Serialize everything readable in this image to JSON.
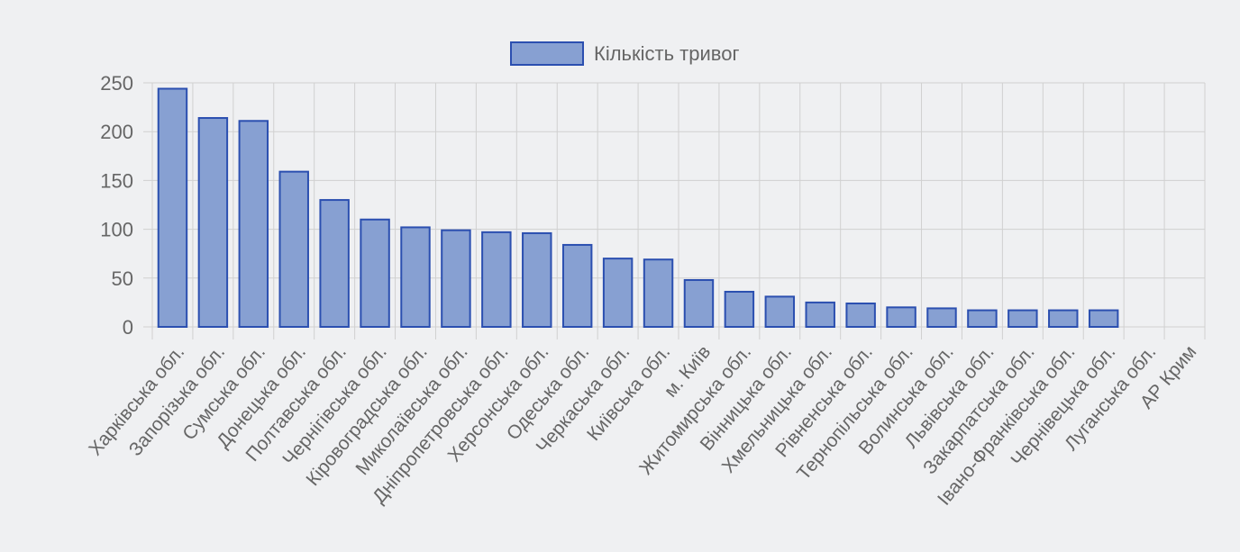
{
  "chart_data": {
    "type": "bar",
    "legend": {
      "label": "Кількість тривог",
      "position": "top"
    },
    "categories": [
      "Харківська обл.",
      "Запорізька обл.",
      "Сумська обл.",
      "Донецька обл.",
      "Полтавська обл.",
      "Чернігівська обл.",
      "Кіровоградська обл.",
      "Миколаївська обл.",
      "Дніпропетровська обл.",
      "Херсонська обл.",
      "Одеська обл.",
      "Черкаська обл.",
      "Київська обл.",
      "м. Київ",
      "Житомирська обл.",
      "Вінницька обл.",
      "Хмельницька обл.",
      "Рівненська обл.",
      "Тернопільська обл.",
      "Волинська обл.",
      "Львівська обл.",
      "Закарпатська обл.",
      "Івано-Франківська обл.",
      "Чернівецька обл.",
      "Луганська обл.",
      "АР Крим"
    ],
    "series": [
      {
        "name": "Кількість тривог",
        "values": [
          244,
          214,
          211,
          159,
          130,
          110,
          102,
          99,
          97,
          96,
          84,
          70,
          69,
          48,
          36,
          31,
          25,
          24,
          20,
          19,
          17,
          17,
          17,
          17,
          0,
          0
        ]
      }
    ],
    "ylim": [
      0,
      250
    ],
    "yticks": [
      0,
      50,
      100,
      150,
      200,
      250
    ],
    "grid": true,
    "colors": {
      "bar_fill": "#87a0d2",
      "bar_stroke": "#2b4fb0",
      "grid": "#d0d0d0",
      "axis_text": "#666666",
      "background": "#eff0f2"
    }
  }
}
